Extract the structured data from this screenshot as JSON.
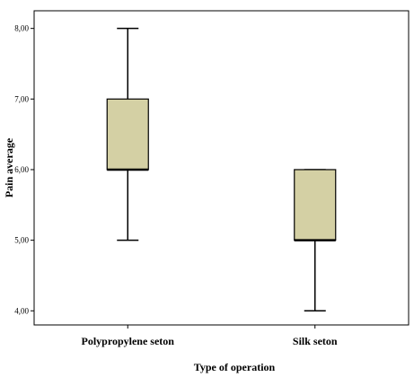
{
  "chart_data": {
    "type": "box",
    "title": "",
    "xlabel": "Type of operation",
    "ylabel": "Pain average",
    "ylim": [
      3.8,
      8.25
    ],
    "yticks": [
      4,
      5,
      6,
      7,
      8
    ],
    "ytick_labels": [
      "4,00",
      "5,00",
      "6,00",
      "7,00",
      "8,00"
    ],
    "grid": false,
    "legend": "none",
    "box_color": "#d4d0a4",
    "categories": [
      "Polypropylene seton",
      "Silk seton"
    ],
    "boxes": [
      {
        "min": 5,
        "q1": 6,
        "median": 6,
        "q3": 7,
        "max": 8
      },
      {
        "min": 4,
        "q1": 5,
        "median": 5,
        "q3": 6,
        "max": 6
      }
    ]
  }
}
